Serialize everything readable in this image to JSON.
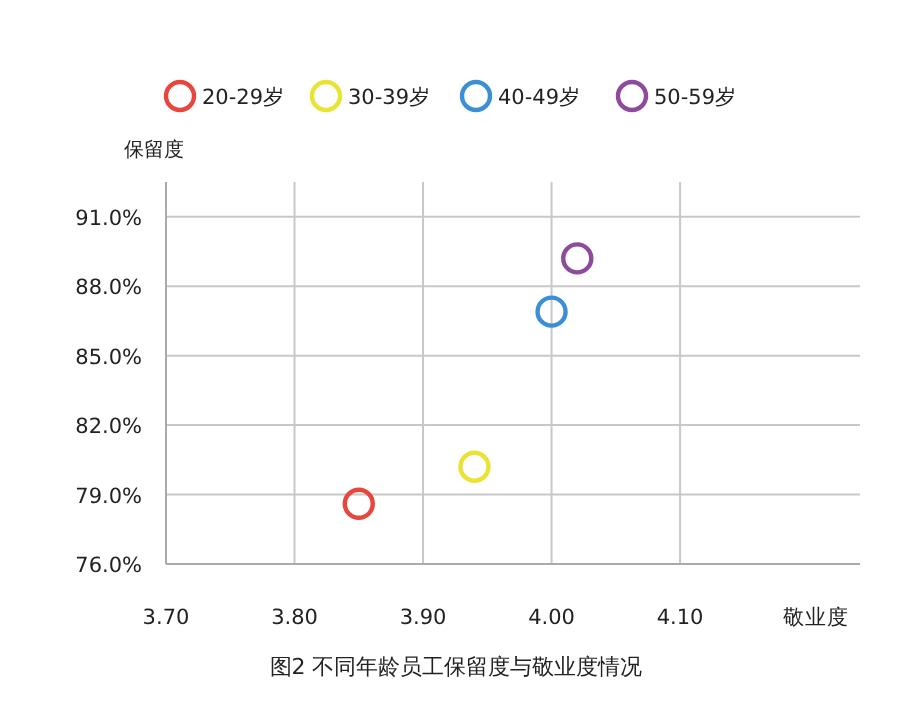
{
  "chart_data": {
    "type": "scatter",
    "xlabel": "敬业度",
    "ylabel": "保留度",
    "annotations": [
      "图2  不同年龄员工保留度与敬业度情况"
    ],
    "xlim": [
      3.7,
      4.24
    ],
    "ylim": [
      76,
      92.5
    ],
    "xticks": [
      {
        "value": 3.7,
        "label": "3.70"
      },
      {
        "value": 3.8,
        "label": "3.80"
      },
      {
        "value": 3.9,
        "label": "3.90"
      },
      {
        "value": 4.0,
        "label": "4.00"
      },
      {
        "value": 4.1,
        "label": "4.10"
      }
    ],
    "yticks": [
      {
        "value": 76,
        "label": "76.0%"
      },
      {
        "value": 79,
        "label": "79.0%"
      },
      {
        "value": 82,
        "label": "82.0%"
      },
      {
        "value": 85,
        "label": "85.0%"
      },
      {
        "value": 88,
        "label": "88.0%"
      },
      {
        "value": 91,
        "label": "91.0%"
      }
    ],
    "grid": true,
    "legend": "top left",
    "marker": "circle",
    "series": [
      {
        "name": "20-29岁",
        "color": "#e8453c",
        "x": [
          3.85
        ],
        "values": [
          78.6
        ]
      },
      {
        "name": "30-39岁",
        "color": "#ebe334",
        "x": [
          3.94
        ],
        "values": [
          80.2
        ]
      },
      {
        "name": "40-49岁",
        "color": "#3b8fd6",
        "x": [
          4.0
        ],
        "values": [
          86.9
        ]
      },
      {
        "name": "50-59岁",
        "color": "#8e4a9c",
        "x": [
          4.02
        ],
        "values": [
          89.2
        ]
      }
    ]
  }
}
